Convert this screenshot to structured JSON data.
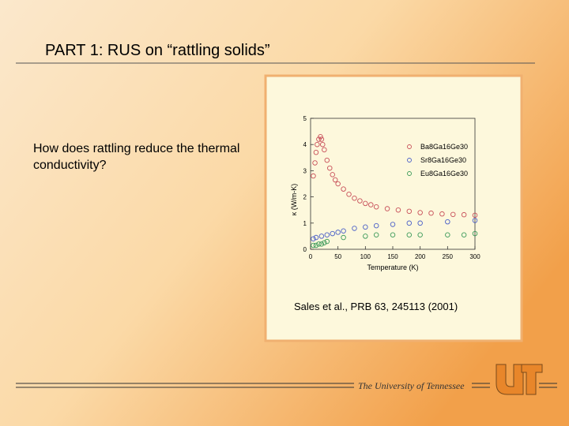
{
  "slide": {
    "title": "PART 1: RUS on “rattling solids”",
    "question": "How does rattling reduce the thermal conductivity?",
    "citation": "Sales et al., PRB 63, 245113 (2001)",
    "footer": "The University of Tennessee"
  },
  "chart_data": {
    "type": "scatter",
    "x_label": "Temperature (K)",
    "y_label": "κ (W/m-K)",
    "xlim": [
      0,
      300
    ],
    "xticks": [
      0,
      50,
      100,
      150,
      200,
      250,
      300
    ],
    "ylim": [
      0,
      5
    ],
    "yticks": [
      0,
      1,
      2,
      3,
      4,
      5
    ],
    "series": [
      {
        "name": "Ba8Ga16Ge30",
        "color": "#c8505a",
        "x": [
          5,
          8,
          10,
          12,
          15,
          18,
          20,
          22,
          25,
          30,
          35,
          40,
          45,
          50,
          60,
          70,
          80,
          90,
          100,
          110,
          120,
          140,
          160,
          180,
          200,
          220,
          240,
          260,
          280,
          300
        ],
        "values": [
          2.8,
          3.3,
          3.7,
          4.0,
          4.2,
          4.3,
          4.2,
          4.0,
          3.8,
          3.4,
          3.1,
          2.85,
          2.65,
          2.5,
          2.3,
          2.1,
          1.95,
          1.85,
          1.75,
          1.7,
          1.62,
          1.55,
          1.5,
          1.45,
          1.4,
          1.38,
          1.35,
          1.33,
          1.32,
          1.3
        ]
      },
      {
        "name": "Sr8Ga16Ge30",
        "color": "#4a5fc8",
        "x": [
          5,
          10,
          20,
          30,
          40,
          50,
          60,
          80,
          100,
          120,
          150,
          180,
          200,
          250,
          300
        ],
        "values": [
          0.4,
          0.45,
          0.5,
          0.55,
          0.6,
          0.65,
          0.7,
          0.8,
          0.85,
          0.9,
          0.95,
          1.0,
          1.0,
          1.05,
          1.1
        ]
      },
      {
        "name": "Eu8Ga16Ge30",
        "color": "#3c9a5a",
        "x": [
          5,
          10,
          15,
          20,
          25,
          30,
          60,
          100,
          120,
          150,
          180,
          200,
          250,
          280,
          300
        ],
        "values": [
          0.15,
          0.15,
          0.2,
          0.2,
          0.25,
          0.3,
          0.45,
          0.5,
          0.55,
          0.55,
          0.55,
          0.55,
          0.55,
          0.55,
          0.6
        ]
      }
    ]
  }
}
